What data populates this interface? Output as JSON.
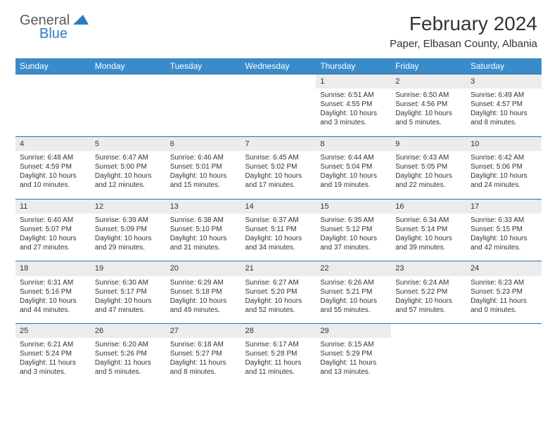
{
  "logo": {
    "general": "General",
    "blue": "Blue"
  },
  "title": "February 2024",
  "location": "Paper, Elbasan County, Albania",
  "colors": {
    "header_bg": "#3a8bc9",
    "daynum_bg": "#ececec",
    "border": "#2f6fa3",
    "logo_blue": "#2f7bbf",
    "logo_gray": "#5a5a5a"
  },
  "dayHeaders": [
    "Sunday",
    "Monday",
    "Tuesday",
    "Wednesday",
    "Thursday",
    "Friday",
    "Saturday"
  ],
  "weeks": [
    [
      null,
      null,
      null,
      null,
      {
        "n": "1",
        "sr": "6:51 AM",
        "ss": "4:55 PM",
        "dl": "10 hours and 3 minutes."
      },
      {
        "n": "2",
        "sr": "6:50 AM",
        "ss": "4:56 PM",
        "dl": "10 hours and 5 minutes."
      },
      {
        "n": "3",
        "sr": "6:49 AM",
        "ss": "4:57 PM",
        "dl": "10 hours and 8 minutes."
      }
    ],
    [
      {
        "n": "4",
        "sr": "6:48 AM",
        "ss": "4:59 PM",
        "dl": "10 hours and 10 minutes."
      },
      {
        "n": "5",
        "sr": "6:47 AM",
        "ss": "5:00 PM",
        "dl": "10 hours and 12 minutes."
      },
      {
        "n": "6",
        "sr": "6:46 AM",
        "ss": "5:01 PM",
        "dl": "10 hours and 15 minutes."
      },
      {
        "n": "7",
        "sr": "6:45 AM",
        "ss": "5:02 PM",
        "dl": "10 hours and 17 minutes."
      },
      {
        "n": "8",
        "sr": "6:44 AM",
        "ss": "5:04 PM",
        "dl": "10 hours and 19 minutes."
      },
      {
        "n": "9",
        "sr": "6:43 AM",
        "ss": "5:05 PM",
        "dl": "10 hours and 22 minutes."
      },
      {
        "n": "10",
        "sr": "6:42 AM",
        "ss": "5:06 PM",
        "dl": "10 hours and 24 minutes."
      }
    ],
    [
      {
        "n": "11",
        "sr": "6:40 AM",
        "ss": "5:07 PM",
        "dl": "10 hours and 27 minutes."
      },
      {
        "n": "12",
        "sr": "6:39 AM",
        "ss": "5:09 PM",
        "dl": "10 hours and 29 minutes."
      },
      {
        "n": "13",
        "sr": "6:38 AM",
        "ss": "5:10 PM",
        "dl": "10 hours and 31 minutes."
      },
      {
        "n": "14",
        "sr": "6:37 AM",
        "ss": "5:11 PM",
        "dl": "10 hours and 34 minutes."
      },
      {
        "n": "15",
        "sr": "6:35 AM",
        "ss": "5:12 PM",
        "dl": "10 hours and 37 minutes."
      },
      {
        "n": "16",
        "sr": "6:34 AM",
        "ss": "5:14 PM",
        "dl": "10 hours and 39 minutes."
      },
      {
        "n": "17",
        "sr": "6:33 AM",
        "ss": "5:15 PM",
        "dl": "10 hours and 42 minutes."
      }
    ],
    [
      {
        "n": "18",
        "sr": "6:31 AM",
        "ss": "5:16 PM",
        "dl": "10 hours and 44 minutes."
      },
      {
        "n": "19",
        "sr": "6:30 AM",
        "ss": "5:17 PM",
        "dl": "10 hours and 47 minutes."
      },
      {
        "n": "20",
        "sr": "6:29 AM",
        "ss": "5:18 PM",
        "dl": "10 hours and 49 minutes."
      },
      {
        "n": "21",
        "sr": "6:27 AM",
        "ss": "5:20 PM",
        "dl": "10 hours and 52 minutes."
      },
      {
        "n": "22",
        "sr": "6:26 AM",
        "ss": "5:21 PM",
        "dl": "10 hours and 55 minutes."
      },
      {
        "n": "23",
        "sr": "6:24 AM",
        "ss": "5:22 PM",
        "dl": "10 hours and 57 minutes."
      },
      {
        "n": "24",
        "sr": "6:23 AM",
        "ss": "5:23 PM",
        "dl": "11 hours and 0 minutes."
      }
    ],
    [
      {
        "n": "25",
        "sr": "6:21 AM",
        "ss": "5:24 PM",
        "dl": "11 hours and 3 minutes."
      },
      {
        "n": "26",
        "sr": "6:20 AM",
        "ss": "5:26 PM",
        "dl": "11 hours and 5 minutes."
      },
      {
        "n": "27",
        "sr": "6:18 AM",
        "ss": "5:27 PM",
        "dl": "11 hours and 8 minutes."
      },
      {
        "n": "28",
        "sr": "6:17 AM",
        "ss": "5:28 PM",
        "dl": "11 hours and 11 minutes."
      },
      {
        "n": "29",
        "sr": "6:15 AM",
        "ss": "5:29 PM",
        "dl": "11 hours and 13 minutes."
      },
      null,
      null
    ]
  ]
}
